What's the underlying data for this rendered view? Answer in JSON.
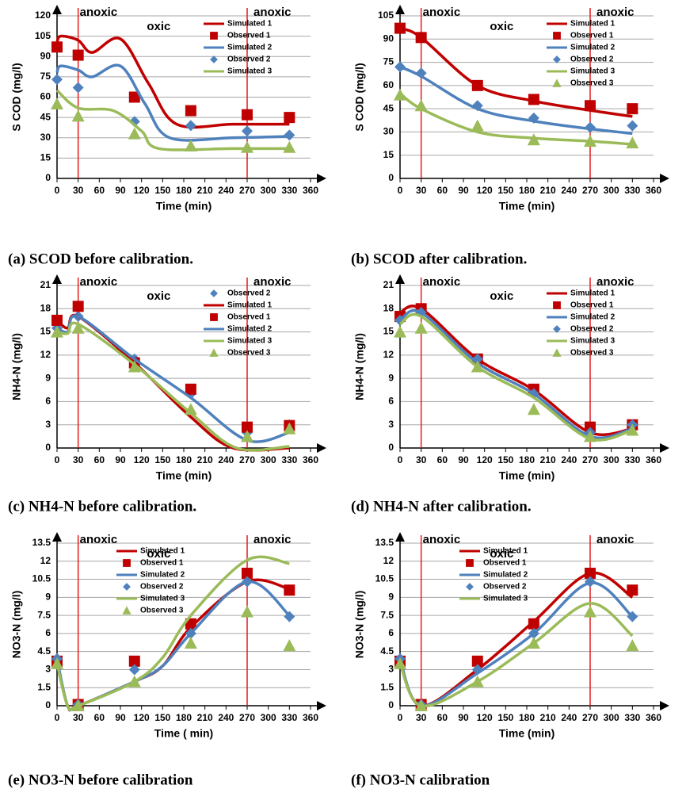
{
  "chart_data": [
    {
      "type": "line",
      "caption": "(a)  SCOD before calibration.",
      "x_label": "Time  (min)",
      "y_label": "S COD  (mg/l)",
      "xlim": [
        0,
        360
      ],
      "xticks": [
        0,
        30,
        60,
        90,
        120,
        150,
        180,
        210,
        240,
        270,
        300,
        330,
        360
      ],
      "ylim": [
        0,
        120
      ],
      "yticks": [
        0,
        15,
        30,
        45,
        60,
        75,
        90,
        105,
        120
      ],
      "grid": true,
      "vlines": [
        30,
        270
      ],
      "annotations": [
        "anoxic",
        "oxic",
        "anoxic"
      ],
      "legend": "right",
      "series": [
        {
          "name": "Simulated 1",
          "mode": "line",
          "color": "#c00000",
          "x": [
            0,
            5,
            30,
            50,
            90,
            130,
            170,
            250,
            330
          ],
          "values": [
            100,
            105,
            102,
            93,
            103,
            70,
            40,
            40,
            40
          ]
        },
        {
          "name": "Observed 1",
          "mode": "marker",
          "marker": "square",
          "color": "#c00000",
          "x": [
            0,
            30,
            110,
            190,
            270,
            330
          ],
          "values": [
            97,
            91,
            60,
            50,
            47,
            45
          ]
        },
        {
          "name": "Simulated 2",
          "mode": "line",
          "color": "#4f81bd",
          "x": [
            0,
            5,
            30,
            50,
            90,
            125,
            160,
            250,
            330
          ],
          "values": [
            78,
            83,
            80,
            75,
            83,
            55,
            30,
            30,
            31
          ]
        },
        {
          "name": "Observed 2",
          "mode": "marker",
          "marker": "diamond",
          "color": "#4f81bd",
          "x": [
            0,
            30,
            110,
            190,
            270,
            330
          ],
          "values": [
            73,
            67,
            42,
            39,
            35,
            32
          ]
        },
        {
          "name": "Simulated 3",
          "mode": "line",
          "color": "#9bbb59",
          "x": [
            0,
            30,
            80,
            120,
            145,
            250,
            330
          ],
          "values": [
            65,
            52,
            50,
            35,
            22,
            22,
            22
          ]
        },
        {
          "mode": "marker",
          "marker": "triangle",
          "color": "#9bbb59",
          "x": [
            0,
            30,
            110,
            190,
            270,
            330
          ],
          "values": [
            55,
            46,
            33,
            24,
            23,
            23
          ]
        }
      ]
    },
    {
      "type": "line",
      "caption": "(b)  SCOD after calibration.",
      "x_label": "Time  (min)",
      "y_label": "S COD  (mg/l)",
      "xlim": [
        0,
        360
      ],
      "xticks": [
        0,
        30,
        60,
        90,
        120,
        150,
        180,
        210,
        240,
        270,
        300,
        330,
        360
      ],
      "ylim": [
        0,
        105
      ],
      "yticks": [
        0,
        15,
        30,
        45,
        60,
        75,
        90,
        105
      ],
      "grid": true,
      "vlines": [
        30,
        270
      ],
      "annotations": [
        "anoxic",
        "oxic",
        "anoxic"
      ],
      "legend": "right",
      "series": [
        {
          "name": "Simulated 1",
          "mode": "line",
          "color": "#c00000",
          "x": [
            0,
            30,
            110,
            190,
            270,
            330
          ],
          "values": [
            97,
            91,
            60,
            50,
            44,
            40
          ]
        },
        {
          "name": "Observed 1",
          "mode": "marker",
          "marker": "square",
          "color": "#c00000",
          "x": [
            0,
            30,
            110,
            190,
            270,
            330
          ],
          "values": [
            97,
            91,
            60,
            51,
            47,
            45
          ]
        },
        {
          "name": "Simulated 2",
          "mode": "line",
          "color": "#4f81bd",
          "x": [
            0,
            30,
            110,
            190,
            270,
            330
          ],
          "values": [
            72,
            66,
            45,
            37,
            32,
            29
          ]
        },
        {
          "name": "Observed 2",
          "mode": "marker",
          "marker": "diamond",
          "color": "#4f81bd",
          "x": [
            0,
            30,
            110,
            190,
            270,
            330
          ],
          "values": [
            72,
            68,
            47,
            39,
            33,
            34
          ]
        },
        {
          "name": "Simulated 3",
          "mode": "line",
          "color": "#9bbb59",
          "x": [
            0,
            30,
            110,
            190,
            270,
            330
          ],
          "values": [
            55,
            45,
            30,
            26,
            24,
            22
          ]
        },
        {
          "name": "Observed 3",
          "mode": "marker",
          "marker": "triangle",
          "color": "#9bbb59",
          "x": [
            0,
            30,
            110,
            190,
            270,
            330
          ],
          "values": [
            54,
            47,
            34,
            25,
            24,
            23
          ]
        }
      ]
    },
    {
      "type": "line",
      "caption": "(c)  NH4-N before calibration.",
      "x_label": "Time (min)",
      "y_label": "NH4-N  (mg/l)",
      "xlim": [
        0,
        360
      ],
      "xticks": [
        0,
        30,
        60,
        90,
        120,
        150,
        180,
        210,
        240,
        270,
        300,
        330,
        360
      ],
      "ylim": [
        0,
        21
      ],
      "yticks": [
        0,
        3,
        6,
        9,
        12,
        15,
        18,
        21
      ],
      "grid": true,
      "vlines": [
        30,
        270
      ],
      "annotations": [
        "anoxic",
        "oxic",
        "anoxic"
      ],
      "legend": "right",
      "series": [
        {
          "name": "Observed 2",
          "mode": "marker",
          "marker": "diamond",
          "color": "#4f81bd",
          "x": [
            0,
            30,
            110,
            190,
            270,
            330
          ],
          "values": [
            15.5,
            17,
            11.5,
            7,
            2,
            3
          ]
        },
        {
          "name": "Simulated 1",
          "mode": "line",
          "color": "#c00000",
          "x": [
            0,
            15,
            30,
            110,
            190,
            250,
            330
          ],
          "values": [
            16.5,
            15.5,
            17,
            11,
            4,
            0,
            0
          ]
        },
        {
          "name": "Observed 1",
          "mode": "marker",
          "marker": "square",
          "color": "#c00000",
          "x": [
            0,
            30,
            110,
            190,
            270,
            330
          ],
          "values": [
            16.5,
            18.3,
            11,
            7.6,
            2.7,
            2.9
          ]
        },
        {
          "name": "Simulated 2",
          "mode": "line",
          "color": "#4f81bd",
          "x": [
            0,
            15,
            30,
            110,
            190,
            270,
            330
          ],
          "values": [
            15.5,
            15,
            17,
            11.5,
            6.5,
            1,
            2
          ]
        },
        {
          "name": "Simulated 3",
          "mode": "line",
          "color": "#9bbb59",
          "x": [
            0,
            15,
            30,
            110,
            190,
            255,
            330
          ],
          "values": [
            15,
            14.8,
            16,
            10.8,
            4.5,
            0,
            0.2
          ]
        },
        {
          "name": "Observed 3",
          "mode": "marker",
          "marker": "triangle",
          "color": "#9bbb59",
          "x": [
            0,
            30,
            110,
            190,
            270,
            330
          ],
          "values": [
            15,
            15.5,
            10.5,
            5,
            1.5,
            2.5
          ]
        }
      ]
    },
    {
      "type": "line",
      "caption": "(d)  NH4-N after calibration.",
      "x_label": "Time  (min)",
      "y_label": "NH4-N (mg/l)",
      "xlim": [
        0,
        360
      ],
      "xticks": [
        0,
        30,
        60,
        90,
        120,
        150,
        180,
        210,
        240,
        270,
        300,
        330,
        360
      ],
      "ylim": [
        0,
        21
      ],
      "yticks": [
        0,
        3,
        6,
        9,
        12,
        15,
        18,
        21
      ],
      "grid": true,
      "vlines": [
        30,
        270
      ],
      "annotations": [
        "anoxic",
        "oxic",
        "anoxic"
      ],
      "legend": "right",
      "series": [
        {
          "name": "Simulated 1",
          "mode": "line",
          "color": "#c00000",
          "x": [
            0,
            30,
            110,
            190,
            270,
            330
          ],
          "values": [
            17.5,
            18,
            11.5,
            7.5,
            2,
            2.5
          ]
        },
        {
          "name": "Observed 1",
          "mode": "marker",
          "marker": "square",
          "color": "#c00000",
          "x": [
            0,
            30,
            110,
            190,
            270,
            330
          ],
          "values": [
            17,
            18,
            11.5,
            7.6,
            2.7,
            3
          ]
        },
        {
          "name": "Simulated 2",
          "mode": "line",
          "color": "#4f81bd",
          "x": [
            0,
            30,
            110,
            190,
            270,
            330
          ],
          "values": [
            16.5,
            17.5,
            11,
            7,
            1.5,
            2.5
          ]
        },
        {
          "name": "Observed 2",
          "mode": "marker",
          "marker": "diamond",
          "color": "#4f81bd",
          "x": [
            0,
            30,
            110,
            190,
            270,
            330
          ],
          "values": [
            16.5,
            17.5,
            11.5,
            7,
            2,
            3
          ]
        },
        {
          "name": "Simulated 3",
          "mode": "line",
          "color": "#9bbb59",
          "x": [
            0,
            30,
            110,
            190,
            270,
            330
          ],
          "values": [
            16,
            17,
            10.5,
            6.5,
            1.2,
            2.3
          ]
        },
        {
          "name": "Observed 3",
          "mode": "marker",
          "marker": "triangle",
          "color": "#9bbb59",
          "x": [
            0,
            30,
            110,
            190,
            270,
            330
          ],
          "values": [
            15,
            15.5,
            10.5,
            5,
            1.5,
            2.3
          ]
        }
      ]
    },
    {
      "type": "line",
      "caption": "(e)  NO3-N before calibration",
      "x_label": "Time ( min)",
      "y_label": "NO3-N  (mg/l)",
      "xlim": [
        0,
        360
      ],
      "xticks": [
        0,
        30,
        60,
        90,
        120,
        150,
        180,
        210,
        240,
        270,
        300,
        330,
        360
      ],
      "ylim": [
        0,
        13.5
      ],
      "yticks": [
        0,
        1.5,
        3,
        4.5,
        6,
        7.5,
        9,
        10.5,
        12,
        13.5
      ],
      "grid": true,
      "vlines": [
        30,
        270
      ],
      "annotations": [
        "anoxic",
        "oxic",
        "anoxic"
      ],
      "legend": "left",
      "series": [
        {
          "name": "Simulated 1",
          "mode": "line",
          "color": "#c00000",
          "x": [
            0,
            15,
            30,
            110,
            150,
            190,
            270,
            330
          ],
          "values": [
            3.8,
            0,
            0,
            2,
            3.3,
            6.5,
            10.3,
            9.7
          ]
        },
        {
          "name": "Observed 1",
          "mode": "marker",
          "marker": "square",
          "color": "#c00000",
          "x": [
            0,
            30,
            110,
            190,
            270,
            330
          ],
          "values": [
            3.7,
            0.1,
            3.7,
            6.8,
            11,
            9.6
          ]
        },
        {
          "name": "Simulated 2",
          "mode": "line",
          "color": "#4f81bd",
          "x": [
            0,
            15,
            30,
            110,
            150,
            190,
            270,
            330
          ],
          "values": [
            3.9,
            0,
            0,
            2,
            3.3,
            6,
            10.3,
            7.5
          ]
        },
        {
          "name": "Observed 2",
          "mode": "marker",
          "marker": "diamond",
          "color": "#4f81bd",
          "x": [
            0,
            30,
            110,
            190,
            270,
            330
          ],
          "values": [
            3.9,
            0.1,
            3,
            6,
            10.3,
            7.4
          ]
        },
        {
          "name": "Simulated 3",
          "mode": "line",
          "color": "#9bbb59",
          "x": [
            0,
            15,
            30,
            110,
            150,
            190,
            270,
            330
          ],
          "values": [
            3.5,
            0,
            0,
            2,
            4,
            7.5,
            12.1,
            11.8
          ]
        },
        {
          "name": "Observed 3",
          "mode": "marker",
          "marker": "triangle",
          "color": "#9bbb59",
          "x": [
            0,
            30,
            110,
            190,
            270,
            330
          ],
          "values": [
            3.5,
            0,
            2,
            5.2,
            7.8,
            5
          ]
        }
      ]
    },
    {
      "type": "line",
      "caption": "(f)  NO3-N calibration",
      "x_label": "Time  (min)",
      "y_label": "NO3-N   (mg/l)",
      "xlim": [
        0,
        360
      ],
      "xticks": [
        0,
        30,
        60,
        90,
        120,
        150,
        180,
        210,
        240,
        270,
        300,
        330,
        360
      ],
      "ylim": [
        0,
        13.5
      ],
      "yticks": [
        0,
        1.5,
        3,
        4.5,
        6,
        7.5,
        9,
        10.5,
        12,
        13.5
      ],
      "grid": true,
      "vlines": [
        30,
        270
      ],
      "annotations": [
        "anoxic",
        "oxic",
        "anoxic"
      ],
      "legend": "left",
      "series": [
        {
          "name": "Simulated 1",
          "mode": "line",
          "color": "#c00000",
          "x": [
            0,
            30,
            110,
            190,
            270,
            330
          ],
          "values": [
            3.8,
            0,
            3,
            7,
            11,
            9
          ]
        },
        {
          "name": "Observed 1",
          "mode": "marker",
          "marker": "square",
          "color": "#c00000",
          "x": [
            0,
            30,
            110,
            190,
            270,
            330
          ],
          "values": [
            3.7,
            0.1,
            3.7,
            6.8,
            11,
            9.6
          ]
        },
        {
          "name": "Simulated 2",
          "mode": "line",
          "color": "#4f81bd",
          "x": [
            0,
            30,
            110,
            190,
            270,
            330
          ],
          "values": [
            3.8,
            0,
            2.7,
            6,
            10.2,
            7.4
          ]
        },
        {
          "name": "Observed 2",
          "mode": "marker",
          "marker": "diamond",
          "color": "#4f81bd",
          "x": [
            0,
            30,
            110,
            190,
            270,
            330
          ],
          "values": [
            3.9,
            0.1,
            3,
            6,
            10.3,
            7.4
          ]
        },
        {
          "name": "Simulated 3",
          "mode": "line",
          "color": "#9bbb59",
          "x": [
            0,
            30,
            110,
            190,
            270,
            330
          ],
          "values": [
            3.5,
            0,
            2,
            5.2,
            8.5,
            5.8
          ]
        },
        {
          "mode": "marker",
          "marker": "triangle",
          "color": "#9bbb59",
          "x": [
            0,
            30,
            110,
            190,
            270,
            330
          ],
          "values": [
            3.5,
            0,
            2,
            5.2,
            7.8,
            5
          ]
        }
      ]
    }
  ]
}
